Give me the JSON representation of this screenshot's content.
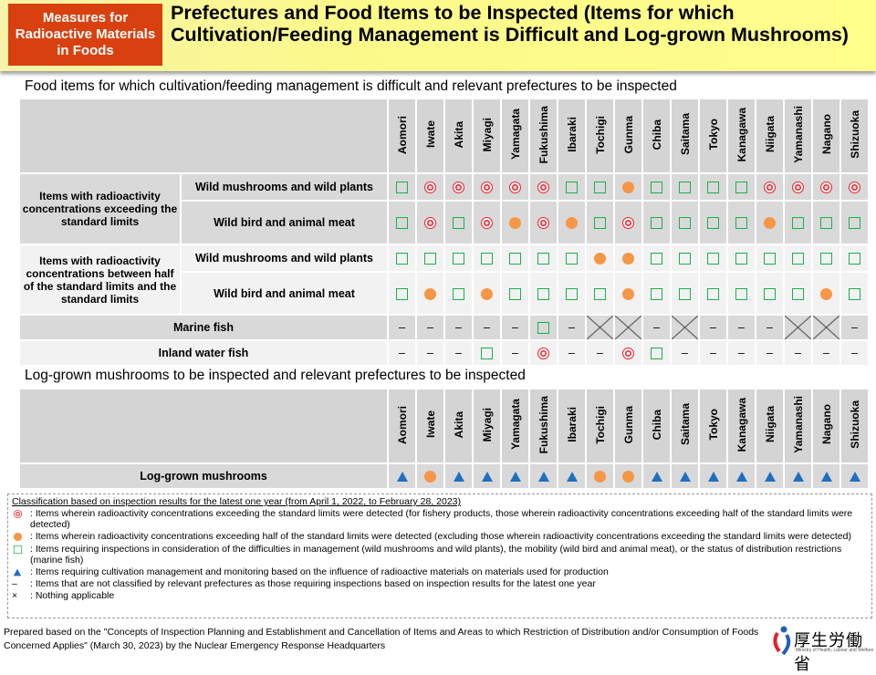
{
  "header": {
    "badge": "Measures for Radioactive Materials in Foods",
    "title": "Prefectures and Food Items to be Inspected (Items for which Cultivation/Feeding Management is Difficult and Log-grown Mushrooms)"
  },
  "prefectures": [
    "Aomori",
    "Iwate",
    "Akita",
    "Miyagi",
    "Yamagata",
    "Fukushima",
    "Ibaraki",
    "Tochigi",
    "Gunma",
    "Chiba",
    "Saitama",
    "Tokyo",
    "Kanagawa",
    "Niigata",
    "Yamanashi",
    "Nagano",
    "Shizuoka"
  ],
  "section1": {
    "title": "Food items for which cultivation/feeding management is difficult and relevant prefectures to be inspected",
    "groups": [
      "Items with radioactivity concentrations exceeding the standard limits",
      "Items with radioactivity concentrations between half of the standard limits and the standard limits"
    ],
    "rows": [
      {
        "group": 0,
        "label": "Wild mushrooms and wild plants",
        "cells": [
          "S",
          "D",
          "D",
          "D",
          "D",
          "D",
          "S",
          "S",
          "O",
          "S",
          "S",
          "S",
          "S",
          "D",
          "D",
          "D",
          "D"
        ]
      },
      {
        "group": 0,
        "label": "Wild bird and animal meat",
        "cells": [
          "S",
          "D",
          "S",
          "D",
          "O",
          "D",
          "O",
          "S",
          "D",
          "S",
          "S",
          "S",
          "S",
          "O",
          "S",
          "S",
          "S"
        ]
      },
      {
        "group": 1,
        "label": "Wild mushrooms and wild plants",
        "cells": [
          "S",
          "S",
          "S",
          "S",
          "S",
          "S",
          "S",
          "O",
          "O",
          "S",
          "S",
          "S",
          "S",
          "S",
          "S",
          "S",
          "S"
        ]
      },
      {
        "group": 1,
        "label": "Wild bird and animal meat",
        "cells": [
          "S",
          "O",
          "S",
          "O",
          "S",
          "S",
          "S",
          "S",
          "O",
          "S",
          "S",
          "S",
          "S",
          "S",
          "S",
          "O",
          "S"
        ]
      },
      {
        "group": null,
        "label": "Marine fish",
        "cells": [
          "-",
          "-",
          "-",
          "-",
          "-",
          "S",
          "-",
          "X",
          "X",
          "-",
          "X",
          "-",
          "-",
          "-",
          "X",
          "X",
          "-"
        ]
      },
      {
        "group": null,
        "label": "Inland water fish",
        "cells": [
          "-",
          "-",
          "-",
          "S",
          "-",
          "D",
          "-",
          "-",
          "D",
          "S",
          "-",
          "-",
          "-",
          "-",
          "-",
          "-",
          "-"
        ]
      }
    ]
  },
  "section2": {
    "title": "Log-grown mushrooms to be inspected and relevant prefectures to be inspected",
    "rows": [
      {
        "label": "Log-grown mushrooms",
        "cells": [
          "T",
          "O",
          "T",
          "T",
          "T",
          "T",
          "T",
          "O",
          "O",
          "T",
          "T",
          "T",
          "T",
          "T",
          "T",
          "T",
          "T"
        ]
      }
    ]
  },
  "legend": {
    "heading": "Classification based on inspection results for the latest one year (from April 1, 2022, to February 28, 2023)",
    "items": [
      {
        "symbol": "D",
        "text": ": Items wherein radioactivity concentrations exceeding the standard limits were detected (for fishery products, those wherein radioactivity concentrations exceeding half of the standard limits were detected)"
      },
      {
        "symbol": "O",
        "text": ": Items wherein radioactivity concentrations exceeding half of the standard limits were detected (excluding those wherein radioactivity concentrations exceeding the standard limits were detected)"
      },
      {
        "symbol": "S",
        "text": ": Items requiring inspections in consideration of the difficulties in management (wild mushrooms and wild plants), the mobility (wild bird and animal meat), or the status of distribution restrictions (marine fish)"
      },
      {
        "symbol": "T",
        "text": ": Items requiring cultivation management and monitoring based on the influence of radioactive materials on materials used for production"
      },
      {
        "symbol": "-",
        "text": ": Items that are not classified by relevant prefectures as those requiring inspections based on inspection results for the latest one year"
      },
      {
        "symbol": "X",
        "text": ": Nothing applicable"
      }
    ]
  },
  "footer": {
    "text": "Prepared based on the \"Concepts of Inspection Planning and Establishment and Cancellation of Items and Areas to which Restriction of Distribution and/or Consumption of Foods Concerned Applies\" (March 30, 2023) by the Nuclear Emergency Response Headquarters",
    "logo_text": "厚生労働省",
    "logo_sub": "Ministry of Health, Labour and Welfare"
  },
  "colors": {
    "badge": "#d9400f",
    "square": "#19b04b",
    "orange": "#f79646",
    "double_circle": "#f0202a",
    "triangle": "#1f6fbf"
  }
}
